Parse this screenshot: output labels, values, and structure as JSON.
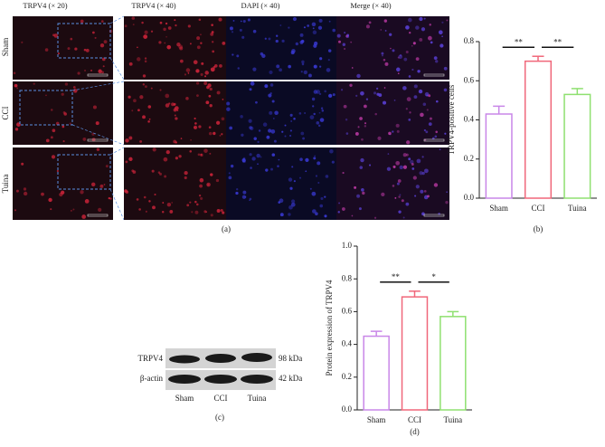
{
  "panel_a": {
    "column_headers": [
      "TRPV4 (× 20)",
      "TRPV4 (× 40)",
      "DAPI (× 40)",
      "Merge (× 40)"
    ],
    "row_labels": [
      "Sham",
      "CCI",
      "Tuina"
    ],
    "caption": "(a)"
  },
  "panel_c": {
    "bands": [
      "TRPV4",
      "β-actin"
    ],
    "sizes": [
      "98 kDa",
      "42 kDa"
    ],
    "lanes": [
      "Sham",
      "CCI",
      "Tuina"
    ],
    "caption": "(c)"
  },
  "chart_data": [
    {
      "type": "bar",
      "caption": "(b)",
      "y_label": "TRPV4-positive cells",
      "categories": [
        "Sham",
        "CCI",
        "Tuina"
      ],
      "values": [
        0.43,
        0.7,
        0.53
      ],
      "errors": [
        0.04,
        0.025,
        0.03
      ],
      "colors": [
        "#c987e8",
        "#f0677a",
        "#8fe070"
      ],
      "ylim": [
        0,
        0.8
      ],
      "yticks": [
        {
          "value": 0,
          "label": "0.0"
        },
        0.2,
        0.4,
        0.6,
        0.8
      ],
      "significance": [
        "**",
        "**"
      ]
    },
    {
      "type": "bar",
      "caption": "(d)",
      "y_label": "Protein expression of TRPV4",
      "categories": [
        "Sham",
        "CCI",
        "Tuina"
      ],
      "values": [
        0.45,
        0.69,
        0.57
      ],
      "errors": [
        0.03,
        0.035,
        0.03
      ],
      "colors": [
        "#c987e8",
        "#f0677a",
        "#8fe070"
      ],
      "ylim": [
        0,
        1.0
      ],
      "yticks": [
        {
          "value": 0,
          "label": "0.0"
        },
        0.2,
        0.4,
        0.6,
        0.8,
        {
          "value": 1.0,
          "label": "1.0"
        }
      ],
      "significance": [
        "**",
        "*"
      ]
    }
  ]
}
